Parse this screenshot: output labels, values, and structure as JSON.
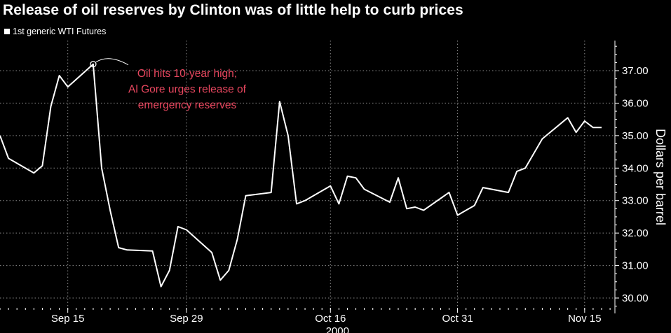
{
  "chart_data": {
    "type": "line",
    "title": "Release of oil reserves by Clinton was of little help to curb prices",
    "ylabel": "Dollars per barrel",
    "ylim": [
      29.75,
      37.9
    ],
    "yticks": [
      30,
      31,
      32,
      33,
      34,
      35,
      36,
      37
    ],
    "ytick_labels": [
      "30.00",
      "31.00",
      "32.00",
      "33.00",
      "34.00",
      "35.00",
      "36.00",
      "37.00"
    ],
    "xlim": [
      "2000-09-07",
      "2000-11-20"
    ],
    "xticks": [
      {
        "date": "2000-09-15",
        "label": "Sep 15"
      },
      {
        "date": "2000-09-29",
        "label": "Sep 29"
      },
      {
        "date": "2000-10-16",
        "label": "Oct 16"
      },
      {
        "date": "2000-10-31",
        "label": "Oct 31"
      },
      {
        "date": "2000-11-15",
        "label": "Nov 15"
      }
    ],
    "year_label": "2000",
    "grid": true,
    "axis_side": "right",
    "legend_position": "top-left",
    "series": [
      {
        "name": "1st generic WTI Futures",
        "color": "#ffffff",
        "x": [
          "2000-09-07",
          "2000-09-08",
          "2000-09-11",
          "2000-09-12",
          "2000-09-13",
          "2000-09-14",
          "2000-09-15",
          "2000-09-18",
          "2000-09-19",
          "2000-09-20",
          "2000-09-21",
          "2000-09-22",
          "2000-09-25",
          "2000-09-26",
          "2000-09-27",
          "2000-09-28",
          "2000-09-29",
          "2000-10-02",
          "2000-10-03",
          "2000-10-04",
          "2000-10-05",
          "2000-10-06",
          "2000-10-09",
          "2000-10-10",
          "2000-10-11",
          "2000-10-12",
          "2000-10-13",
          "2000-10-16",
          "2000-10-17",
          "2000-10-18",
          "2000-10-19",
          "2000-10-20",
          "2000-10-23",
          "2000-10-24",
          "2000-10-25",
          "2000-10-26",
          "2000-10-27",
          "2000-10-30",
          "2000-10-31",
          "2000-11-01",
          "2000-11-02",
          "2000-11-03",
          "2000-11-06",
          "2000-11-07",
          "2000-11-08",
          "2000-11-09",
          "2000-11-10",
          "2000-11-13",
          "2000-11-14",
          "2000-11-15",
          "2000-11-16",
          "2000-11-17"
        ],
        "y": [
          35.0,
          34.3,
          33.85,
          34.07,
          35.9,
          36.85,
          36.5,
          37.2,
          34.0,
          32.7,
          31.55,
          31.48,
          31.45,
          30.35,
          30.85,
          32.2,
          32.1,
          31.4,
          30.55,
          30.85,
          31.8,
          33.15,
          33.25,
          36.05,
          35.0,
          32.9,
          33.0,
          33.45,
          32.9,
          33.75,
          33.7,
          33.35,
          32.95,
          33.7,
          32.75,
          32.8,
          32.7,
          33.25,
          32.55,
          32.7,
          32.85,
          33.4,
          33.25,
          33.9,
          34.0,
          34.45,
          34.9,
          35.55,
          35.1,
          35.45,
          35.25,
          35.25
        ]
      }
    ],
    "annotation": {
      "lines": [
        "Oil hits 10-year high;",
        "Al Gore urges release of",
        "emergency reserves"
      ],
      "color": "#e8475f",
      "target_date": "2000-09-18"
    }
  }
}
